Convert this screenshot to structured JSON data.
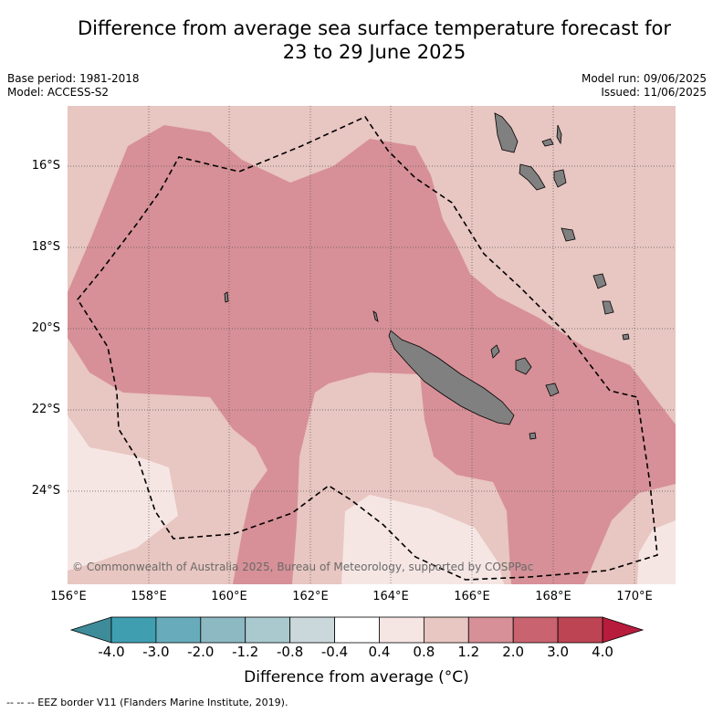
{
  "title_line1": "Difference from average sea surface temperature forecast for",
  "title_line2": "23 to 29 June 2025",
  "base_period": "Base period: 1981-2018",
  "model": "Model: ACCESS-S2",
  "model_run": "Model run: 09/06/2025",
  "issued": "Issued: 11/06/2025",
  "copyright": "© Commonwealth of Australia 2025, Bureau of Meteorology, supported by COSPPac",
  "lon_ticks": [
    "156°E",
    "158°E",
    "160°E",
    "162°E",
    "164°E",
    "166°E",
    "168°E",
    "170°E"
  ],
  "lat_ticks": [
    "16°S",
    "18°S",
    "20°S",
    "22°S",
    "24°S"
  ],
  "colorbar": {
    "ticks": [
      "-4.0",
      "-3.0",
      "-2.0",
      "-1.2",
      "-0.8",
      "-0.4",
      "0.4",
      "0.8",
      "1.2",
      "2.0",
      "3.0",
      "4.0"
    ],
    "colors": [
      "#3f9fb1",
      "#68acbb",
      "#8db9c3",
      "#a9c9ce",
      "#cbd8db",
      "#ffffff",
      "#f5e6e4",
      "#e8c6c1",
      "#d79097",
      "#c8636f",
      "#bd4453"
    ],
    "under_color": "#3e8b99",
    "over_color": "#b71c3c",
    "label": "Difference from average (°C)"
  },
  "legend_footer": "--  --  -- EEZ border V11 (Flanders Marine Institute, 2019).",
  "map_colors": {
    "band_0_4_0_8": "#f5e6e4",
    "band_0_8_1_2": "#e8c6c1",
    "band_1_2_2_0": "#d79097",
    "land": "#808080"
  }
}
